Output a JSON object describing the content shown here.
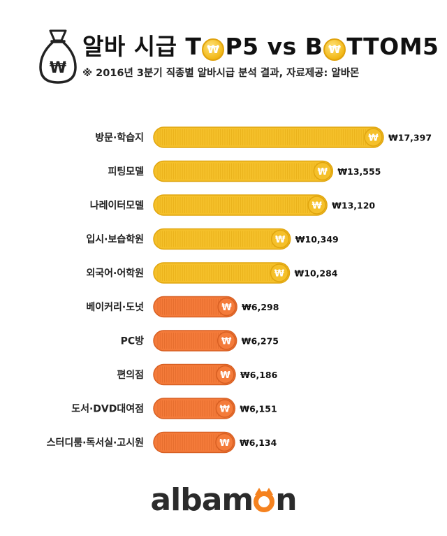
{
  "header": {
    "title_pre": "알바 시급 T",
    "title_mid": "P5 vs B",
    "title_post": "TTOM5",
    "coin_symbol": "₩",
    "subtitle": "※ 2016년 3분기 직종별 알바시급 분석 결과,  자료제공: 알바몬",
    "bag_symbol": "₩"
  },
  "colors": {
    "top_bar": "#f5c02a",
    "top_bar_edge": "#e0a50e",
    "bottom_bar": "#f47b3a",
    "bottom_bar_edge": "#d85f22"
  },
  "chart_data": {
    "type": "bar",
    "orientation": "horizontal",
    "title": "알바 시급 TOP5 vs BOTTOM5",
    "subtitle": "※ 2016년 3분기 직종별 알바시급 분석 결과,  자료제공: 알바몬",
    "categories": [
      "방문·학습지",
      "피팅모델",
      "나레이터모델",
      "입시·보습학원",
      "외국어·어학원",
      "베이커리·도넛",
      "PC방",
      "편의점",
      "도서·DVD대여점",
      "스터디룸·독서실·고시원"
    ],
    "values": [
      17397,
      13555,
      13120,
      10349,
      10284,
      6298,
      6275,
      6186,
      6151,
      6134
    ],
    "value_labels": [
      "₩17,397",
      "₩13,555",
      "₩13,120",
      "₩10,349",
      "₩10,284",
      "₩6,298",
      "₩6,275",
      "₩6,186",
      "₩6,151",
      "₩6,134"
    ],
    "groups": [
      "top",
      "top",
      "top",
      "top",
      "top",
      "bottom",
      "bottom",
      "bottom",
      "bottom",
      "bottom"
    ],
    "xlim": [
      0,
      17397
    ],
    "grid": false,
    "legend": "none"
  },
  "brand": {
    "logo_pre": "albam",
    "logo_post": "n"
  }
}
